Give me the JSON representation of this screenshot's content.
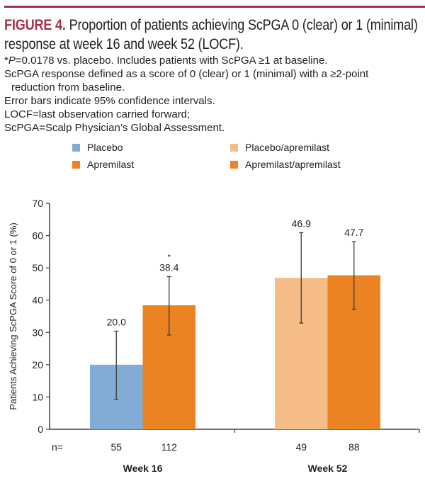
{
  "figure": {
    "label": "FIGURE 4.",
    "title": " Proportion of patients achieving ScPGA 0 (clear) or 1 (minimal) response at week 16 and week 52 (LOCF).",
    "notes": [
      {
        "prefix": "*",
        "italic": "P",
        "text": "=0.0178 vs. placebo. Includes patients with ScPGA ≥1 at baseline."
      },
      {
        "text": "ScPGA response defined as a score of 0 (clear) or 1 (minimal) with a ≥2-point"
      },
      {
        "text": "reduction from baseline.",
        "indent": true
      },
      {
        "text": "Error bars indicate 95% confidence intervals."
      },
      {
        "text": "LOCF=last observation carried forward;"
      },
      {
        "text": "ScPGA=Scalp Physician’s Global Assessment."
      }
    ]
  },
  "colors": {
    "accent": "#a3334a",
    "placebo": "#82abd6",
    "apremilast": "#eb8323",
    "placebo_apremilast": "#f5bc88",
    "apremilast_apremilast": "#eb8323",
    "axis": "#404040"
  },
  "chart_data": {
    "type": "bar",
    "title": "Proportion of patients achieving ScPGA 0 (clear) or 1 (minimal) response at week 16 and week 52 (LOCF)",
    "ylabel": "Patients Achieving ScPGA Score of  0 or 1 (%)",
    "xlabel": "",
    "ylim": [
      0,
      70
    ],
    "yticks": [
      0,
      10,
      20,
      30,
      40,
      50,
      60,
      70
    ],
    "grid": false,
    "legend_position": "top",
    "n_label": "n=",
    "groups": [
      {
        "name": "Week 16",
        "bars": [
          {
            "series": "Placebo",
            "value": 20.0,
            "label": "20.0",
            "ci": [
              9.3,
              30.4
            ],
            "n": "55",
            "color_key": "placebo",
            "annotation": ""
          },
          {
            "series": "Apremilast",
            "value": 38.4,
            "label": "38.4",
            "ci": [
              29.2,
              47.3
            ],
            "n": "112",
            "color_key": "apremilast",
            "annotation": "*"
          }
        ]
      },
      {
        "name": "Week 52",
        "bars": [
          {
            "series": "Placebo/apremilast",
            "value": 46.9,
            "label": "46.9",
            "ci": [
              32.9,
              60.9
            ],
            "n": "49",
            "color_key": "placebo_apremilast",
            "annotation": ""
          },
          {
            "series": "Apremilast/apremilast",
            "value": 47.7,
            "label": "47.7",
            "ci": [
              37.2,
              58.1
            ],
            "n": "88",
            "color_key": "apremilast_apremilast",
            "annotation": ""
          }
        ]
      }
    ],
    "legend": [
      {
        "label": "Placebo",
        "color_key": "placebo"
      },
      {
        "label": "Apremilast",
        "color_key": "apremilast"
      },
      {
        "label": "Placebo/apremilast",
        "color_key": "placebo_apremilast"
      },
      {
        "label": "Apremilast/apremilast",
        "color_key": "apremilast_apremilast"
      }
    ]
  }
}
